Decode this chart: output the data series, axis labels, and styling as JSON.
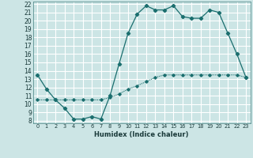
{
  "title": "",
  "xlabel": "Humidex (Indice chaleur)",
  "xlim": [
    0,
    23
  ],
  "ylim": [
    8,
    22
  ],
  "yticks": [
    8,
    9,
    10,
    11,
    12,
    13,
    14,
    15,
    16,
    17,
    18,
    19,
    20,
    21,
    22
  ],
  "xticks": [
    0,
    1,
    2,
    3,
    4,
    5,
    6,
    7,
    8,
    9,
    10,
    11,
    12,
    13,
    14,
    15,
    16,
    17,
    18,
    19,
    20,
    21,
    22,
    23
  ],
  "bg_color": "#cce5e5",
  "grid_color": "#ffffff",
  "line_color": "#1a6e6e",
  "line1_x": [
    0,
    1,
    2,
    3,
    4,
    5,
    6,
    7,
    8,
    9,
    10,
    11,
    12,
    13,
    14,
    15,
    16,
    17,
    18,
    19,
    20,
    21,
    22,
    23
  ],
  "line1_y": [
    13.5,
    11.8,
    10.5,
    9.5,
    8.2,
    8.2,
    8.5,
    8.2,
    11.0,
    14.8,
    18.5,
    20.8,
    21.8,
    21.3,
    21.3,
    21.8,
    20.5,
    20.3,
    20.3,
    21.3,
    21.0,
    18.5,
    16.0,
    13.2
  ],
  "line2_x": [
    0,
    1,
    2,
    3,
    4,
    5,
    6,
    7,
    8,
    9,
    10,
    11,
    12,
    13,
    14,
    15,
    16,
    17,
    18,
    19,
    20,
    21,
    22,
    23
  ],
  "line2_y": [
    10.5,
    10.5,
    10.5,
    10.5,
    10.5,
    10.5,
    10.5,
    10.5,
    10.8,
    11.2,
    11.8,
    12.2,
    12.7,
    13.2,
    13.5,
    13.5,
    13.5,
    13.5,
    13.5,
    13.5,
    13.5,
    13.5,
    13.5,
    13.2
  ]
}
